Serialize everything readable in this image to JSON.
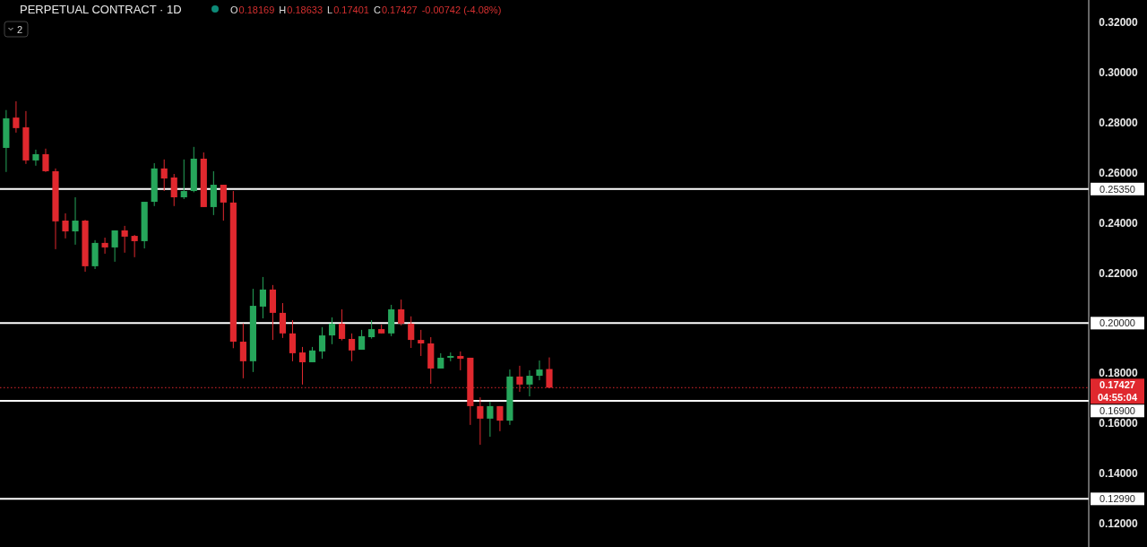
{
  "chart_data": {
    "type": "candlestick",
    "title": "PERPETUAL CONTRACT · 1D",
    "categories": [
      null,
      null,
      null,
      null,
      null,
      null,
      null,
      null,
      null,
      null,
      null,
      null,
      null,
      null,
      null,
      null,
      null,
      null,
      null,
      null,
      null,
      null,
      null,
      null,
      null,
      null,
      null,
      null,
      null,
      null,
      null,
      null,
      null,
      null,
      null,
      null,
      null,
      null,
      null,
      null,
      null,
      null,
      null,
      null,
      null,
      null,
      null,
      null,
      null,
      null,
      null,
      null,
      null,
      null,
      null,
      null,
      null,
      null,
      null,
      null,
      null,
      null,
      null,
      null,
      null,
      null,
      null,
      null,
      null,
      null,
      null,
      null,
      null,
      null,
      null,
      null,
      null,
      null,
      null,
      null,
      null,
      null,
      null,
      null,
      null,
      null,
      null,
      null,
      null,
      null,
      null,
      null,
      null,
      null,
      null,
      null,
      null,
      null,
      null,
      null,
      null,
      null,
      null,
      null,
      null,
      null,
      null,
      null,
      null,
      null
    ],
    "ohlc": [
      [
        0.2699,
        0.285,
        0.2603,
        0.2817
      ],
      [
        0.282,
        0.2885,
        0.276,
        0.2778
      ],
      [
        0.2781,
        0.2846,
        0.2635,
        0.2649
      ],
      [
        0.2649,
        0.2692,
        0.2628,
        0.2674
      ],
      [
        0.2674,
        0.2696,
        0.2603,
        0.2606
      ],
      [
        0.2606,
        0.2617,
        0.2295,
        0.2406
      ],
      [
        0.2409,
        0.2438,
        0.2338,
        0.2366
      ],
      [
        0.2366,
        0.2502,
        0.2313,
        0.2409
      ],
      [
        0.2409,
        0.2412,
        0.2205,
        0.2227
      ],
      [
        0.2227,
        0.2331,
        0.2216,
        0.232
      ],
      [
        0.232,
        0.2341,
        0.2277,
        0.2302
      ],
      [
        0.2302,
        0.237,
        0.2245,
        0.237
      ],
      [
        0.237,
        0.2388,
        0.2281,
        0.2345
      ],
      [
        0.2348,
        0.2352,
        0.2263,
        0.2327
      ],
      [
        0.2327,
        0.2484,
        0.2298,
        0.2484
      ],
      [
        0.2484,
        0.2638,
        0.2467,
        0.2617
      ],
      [
        0.2617,
        0.2653,
        0.2527,
        0.2577
      ],
      [
        0.2581,
        0.2595,
        0.2467,
        0.2502
      ],
      [
        0.2502,
        0.2653,
        0.2495,
        0.2527
      ],
      [
        0.2527,
        0.2703,
        0.2522,
        0.2656
      ],
      [
        0.2656,
        0.2681,
        0.2463,
        0.2463
      ],
      [
        0.2463,
        0.2606,
        0.2431,
        0.2552
      ],
      [
        0.2552,
        0.2552,
        0.2409,
        0.2481
      ],
      [
        0.2481,
        0.2527,
        0.19,
        0.1926
      ],
      [
        0.1926,
        0.1999,
        0.178,
        0.1848
      ],
      [
        0.1848,
        0.2137,
        0.1805,
        0.2069
      ],
      [
        0.2066,
        0.2184,
        0.2019,
        0.2134
      ],
      [
        0.2134,
        0.2152,
        0.1933,
        0.2041
      ],
      [
        0.2041,
        0.208,
        0.1941,
        0.1959
      ],
      [
        0.1959,
        0.2012,
        0.1848,
        0.188
      ],
      [
        0.1883,
        0.1905,
        0.1755,
        0.1844
      ],
      [
        0.1844,
        0.1905,
        0.1844,
        0.1891
      ],
      [
        0.1887,
        0.1984,
        0.1858,
        0.1951
      ],
      [
        0.1951,
        0.2023,
        0.1916,
        0.1998
      ],
      [
        0.1998,
        0.2055,
        0.1931,
        0.1937
      ],
      [
        0.1937,
        0.1959,
        0.1848,
        0.1891
      ],
      [
        0.1894,
        0.1973,
        0.1894,
        0.1948
      ],
      [
        0.1944,
        0.2012,
        0.1938,
        0.1976
      ],
      [
        0.1976,
        0.1994,
        0.1959,
        0.1959
      ],
      [
        0.1959,
        0.2073,
        0.1948,
        0.2055
      ],
      [
        0.2055,
        0.2094,
        0.1991,
        0.1998
      ],
      [
        0.1998,
        0.2027,
        0.1901,
        0.1933
      ],
      [
        0.1933,
        0.1973,
        0.1869,
        0.1919
      ],
      [
        0.1919,
        0.1944,
        0.1758,
        0.1819
      ],
      [
        0.1819,
        0.188,
        0.1819,
        0.1862
      ],
      [
        0.1862,
        0.1883,
        0.1848,
        0.1869
      ],
      [
        0.1869,
        0.1887,
        0.1812,
        0.1858
      ],
      [
        0.1862,
        0.1862,
        0.1594,
        0.1669
      ],
      [
        0.1669,
        0.1704,
        0.1515,
        0.1619
      ],
      [
        0.1619,
        0.1687,
        0.1547,
        0.1669
      ],
      [
        0.1669,
        0.1669,
        0.1569,
        0.1611
      ],
      [
        0.1611,
        0.1815,
        0.1594,
        0.1787
      ],
      [
        0.1787,
        0.183,
        0.1726,
        0.1755
      ],
      [
        0.1755,
        0.1812,
        0.1708,
        0.179
      ],
      [
        0.179,
        0.1851,
        0.1772,
        0.1815
      ],
      [
        0.18169,
        0.18633,
        0.17401,
        0.17427
      ],
      null,
      null,
      null,
      null,
      null,
      null,
      null,
      null,
      null,
      null,
      null,
      null,
      null,
      null,
      null,
      null,
      null,
      null,
      null,
      null,
      null,
      null,
      null,
      null,
      null,
      null,
      null,
      null,
      null,
      null,
      null,
      null,
      null,
      null,
      null,
      null,
      null,
      null,
      null,
      null,
      null,
      null,
      null,
      null,
      null,
      null,
      null,
      null,
      null,
      null,
      null,
      null,
      null,
      null
    ],
    "ylim": [
      0.1107,
      0.3289
    ],
    "yticks": [
      {
        "value": 0.12,
        "label": "0.12000"
      },
      {
        "value": 0.14,
        "label": "0.14000"
      },
      {
        "value": 0.16,
        "label": "0.16000"
      },
      {
        "value": 0.18,
        "label": "0.18000"
      },
      {
        "value": 0.2,
        "label": null
      },
      {
        "value": 0.22,
        "label": "0.22000"
      },
      {
        "value": 0.24,
        "label": "0.24000"
      },
      {
        "value": 0.26,
        "label": "0.26000"
      },
      {
        "value": 0.28,
        "label": "0.28000"
      },
      {
        "value": 0.3,
        "label": "0.30000"
      },
      {
        "value": 0.32,
        "label": "0.32000"
      }
    ],
    "tick_labels": "y",
    "grid": false,
    "ref_lines": [
      {
        "axis": "y",
        "value": 0.2535,
        "label": "0.25350",
        "color": "#ffffff",
        "line_style": "solid"
      },
      {
        "axis": "y",
        "value": 0.2,
        "label": "0.20000",
        "color": "#ffffff",
        "line_style": "solid"
      },
      {
        "axis": "y",
        "value": 0.169,
        "label": "0.16900",
        "color": "#ffffff",
        "line_style": "solid"
      },
      {
        "axis": "y",
        "value": 0.1299,
        "label": "0.12990",
        "color": "#ffffff",
        "line_style": "solid"
      },
      {
        "axis": "y",
        "value": 0.17427,
        "label": "0.17427",
        "color": "#e0282e",
        "line_style": "dotted"
      }
    ],
    "annotations": [
      "O",
      "0.18169",
      "H",
      "0.18633",
      "L",
      "0.17401",
      "C",
      "0.17427",
      "-0.00742 (-4.08%)",
      "04:55:04",
      "2"
    ]
  }
}
